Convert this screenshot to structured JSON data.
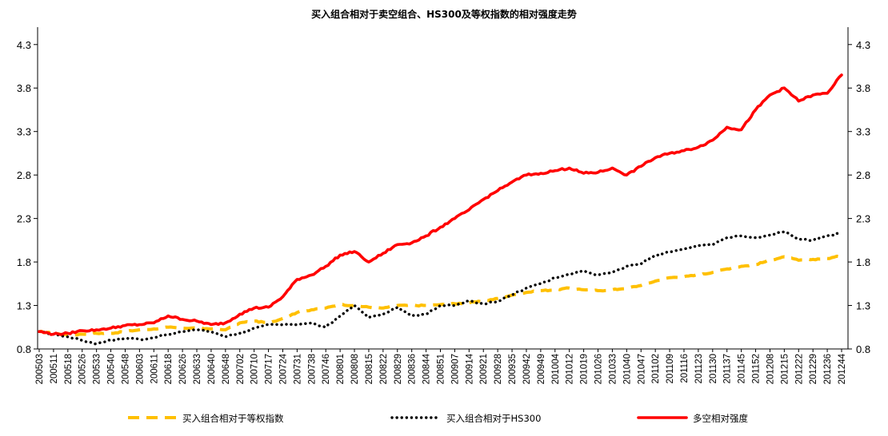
{
  "chart_data": {
    "type": "line",
    "title": "买入组合相对于卖空组合、HS300及等权指数的相对强度走势",
    "ylim": [
      0.8,
      4.5
    ],
    "yticks": [
      "0.8",
      "1.3",
      "1.8",
      "2.3",
      "2.8",
      "3.3",
      "3.8",
      "4.3"
    ],
    "secondary_yticks": [
      "0.8",
      "1.3",
      "1.8",
      "2.3",
      "2.8",
      "3.3",
      "3.8",
      "4.3"
    ],
    "x_tick_labels": [
      "200503",
      "200511",
      "200518",
      "200526",
      "200533",
      "200540",
      "200548",
      "200603",
      "200611",
      "200618",
      "200626",
      "200633",
      "200640",
      "200648",
      "200702",
      "200710",
      "200717",
      "200724",
      "200731",
      "200738",
      "200746",
      "200801",
      "200808",
      "200815",
      "200822",
      "200829",
      "200836",
      "200844",
      "200851",
      "200907",
      "200914",
      "200921",
      "200928",
      "200935",
      "200942",
      "200949",
      "201004",
      "201012",
      "201019",
      "201026",
      "201033",
      "201040",
      "201047",
      "201102",
      "201109",
      "201116",
      "201123",
      "201130",
      "201137",
      "201145",
      "201152",
      "201208",
      "201215",
      "201222",
      "201229",
      "201236",
      "201244"
    ],
    "series": [
      {
        "name": "买入组合相对于等权指数",
        "color": "#FFC000",
        "style": "dashed",
        "values": [
          1.0,
          0.98,
          0.96,
          0.97,
          0.98,
          0.98,
          1.0,
          1.02,
          1.03,
          1.05,
          1.04,
          1.04,
          1.03,
          1.02,
          1.1,
          1.12,
          1.1,
          1.15,
          1.22,
          1.25,
          1.27,
          1.31,
          1.3,
          1.28,
          1.27,
          1.3,
          1.3,
          1.3,
          1.31,
          1.32,
          1.33,
          1.35,
          1.38,
          1.42,
          1.45,
          1.47,
          1.48,
          1.5,
          1.48,
          1.47,
          1.48,
          1.5,
          1.53,
          1.58,
          1.62,
          1.63,
          1.65,
          1.68,
          1.72,
          1.75,
          1.77,
          1.82,
          1.86,
          1.82,
          1.83,
          1.84,
          1.87
        ]
      },
      {
        "name": "买入组合相对于HS300",
        "color": "#000000",
        "style": "dotted",
        "values": [
          1.0,
          0.97,
          0.94,
          0.9,
          0.86,
          0.9,
          0.92,
          0.91,
          0.93,
          0.97,
          1.0,
          1.02,
          1.0,
          0.94,
          0.98,
          1.04,
          1.08,
          1.08,
          1.08,
          1.1,
          1.05,
          1.18,
          1.3,
          1.16,
          1.2,
          1.28,
          1.18,
          1.2,
          1.3,
          1.3,
          1.35,
          1.32,
          1.35,
          1.42,
          1.5,
          1.55,
          1.62,
          1.66,
          1.7,
          1.65,
          1.68,
          1.75,
          1.78,
          1.88,
          1.92,
          1.95,
          1.99,
          2.0,
          2.08,
          2.1,
          2.08,
          2.11,
          2.15,
          2.06,
          2.05,
          2.1,
          2.13
        ]
      },
      {
        "name": "多空相对强度",
        "color": "#FF0000",
        "style": "solid",
        "values": [
          1.0,
          0.97,
          0.98,
          1.01,
          1.02,
          1.04,
          1.07,
          1.08,
          1.1,
          1.18,
          1.14,
          1.12,
          1.08,
          1.1,
          1.2,
          1.27,
          1.28,
          1.4,
          1.6,
          1.65,
          1.75,
          1.88,
          1.92,
          1.8,
          1.9,
          2.0,
          2.02,
          2.1,
          2.2,
          2.3,
          2.4,
          2.52,
          2.62,
          2.72,
          2.8,
          2.82,
          2.85,
          2.88,
          2.82,
          2.83,
          2.88,
          2.8,
          2.9,
          3.0,
          3.05,
          3.08,
          3.12,
          3.2,
          3.35,
          3.32,
          3.55,
          3.72,
          3.8,
          3.65,
          3.72,
          3.74,
          3.95
        ]
      }
    ],
    "legend_position": "bottom",
    "grid": false
  }
}
